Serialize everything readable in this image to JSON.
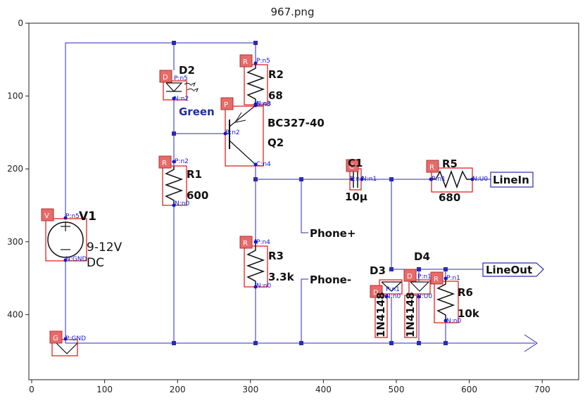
{
  "title": "967.png",
  "axes": {
    "x_ticks": [
      "0",
      "100",
      "200",
      "300",
      "400",
      "500",
      "600",
      "700"
    ],
    "y_ticks": [
      "0",
      "100",
      "200",
      "300",
      "400"
    ]
  },
  "components": {
    "V1": {
      "name": "V1",
      "badge": "V",
      "pin_p": "P:n5",
      "pin_n": "N:GND",
      "value1": "9-12V",
      "value2": "DC"
    },
    "G1": {
      "badge": "G",
      "pin": "P:GND"
    },
    "D2": {
      "name": "D2",
      "badge": "D",
      "pin_p": "P:n5",
      "pin_n": "N:n2",
      "value": "Green"
    },
    "R1": {
      "name": "R1",
      "badge": "R",
      "pin_p": "P:n2",
      "pin_n": "N:n0",
      "value": "600"
    },
    "R2": {
      "name": "R2",
      "badge": "R",
      "pin_p": "P:n5",
      "pin_n": "N:n3",
      "value": "68"
    },
    "Q2": {
      "name": "Q2",
      "badge": "P",
      "pin_b": "B:n2",
      "pin_e": "E:n3",
      "pin_c": "C:n4",
      "value": "BC327-40"
    },
    "R3": {
      "name": "R3",
      "badge": "R",
      "pin_p": "P:n4",
      "pin_n": "N:n0",
      "value": "3.3k"
    },
    "C1": {
      "name": "C1",
      "badge": "C",
      "pin_p": "P:n4",
      "pin_n": "N:n1",
      "value": "10µ"
    },
    "R5": {
      "name": "R5",
      "badge": "R",
      "pin_p": "P:n1",
      "pin_n": "N:U0",
      "value": "680"
    },
    "D3": {
      "name": "D3",
      "badge": "D",
      "pin_a": "P:n1",
      "pin_b": "N:n0",
      "value": "1N4148"
    },
    "D4": {
      "name": "D4",
      "badge": "D",
      "pin_a": "P:n1",
      "pin_b": "N:U0",
      "value": "1N4148"
    },
    "R6": {
      "name": "R6",
      "badge": "R",
      "pin_p": "P:n1",
      "pin_n": "N:n0",
      "value": "10k"
    }
  },
  "ports": {
    "linein": "LineIn",
    "lineout": "LineOut",
    "phone_plus": "Phone+",
    "phone_minus": "Phone-"
  },
  "colors": {
    "wire": "#2b2bb5",
    "pin": "#1515d0",
    "badge": "#e86b6b",
    "box": "#e01010"
  }
}
